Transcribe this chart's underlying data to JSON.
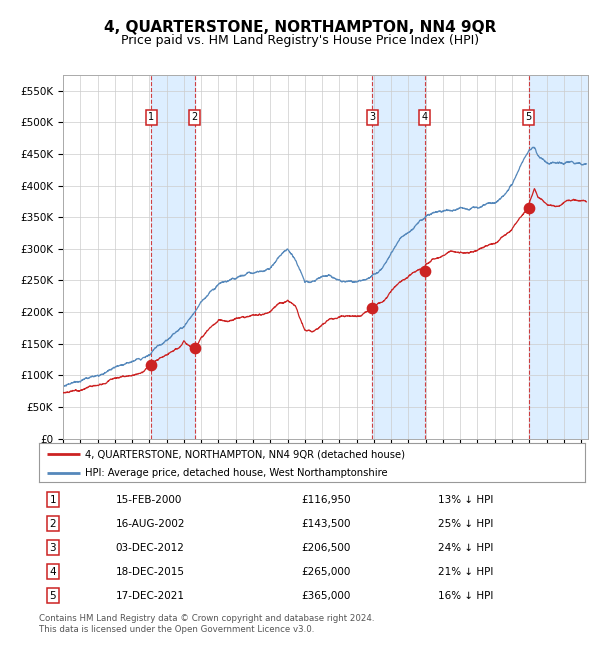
{
  "title": "4, QUARTERSTONE, NORTHAMPTON, NN4 9QR",
  "subtitle": "Price paid vs. HM Land Registry's House Price Index (HPI)",
  "legend_line1": "4, QUARTERSTONE, NORTHAMPTON, NN4 9QR (detached house)",
  "legend_line2": "HPI: Average price, detached house, West Northamptonshire",
  "footer": "Contains HM Land Registry data © Crown copyright and database right 2024.\nThis data is licensed under the Open Government Licence v3.0.",
  "transactions": [
    {
      "num": 1,
      "price": 116950,
      "x_year": 2000.12
    },
    {
      "num": 2,
      "price": 143500,
      "x_year": 2002.63
    },
    {
      "num": 3,
      "price": 206500,
      "x_year": 2012.92
    },
    {
      "num": 4,
      "price": 265000,
      "x_year": 2015.96
    },
    {
      "num": 5,
      "price": 365000,
      "x_year": 2021.96
    }
  ],
  "table_rows": [
    {
      "num": 1,
      "date": "15-FEB-2000",
      "price": "£116,950",
      "pct": "13% ↓ HPI"
    },
    {
      "num": 2,
      "date": "16-AUG-2002",
      "price": "£143,500",
      "pct": "25% ↓ HPI"
    },
    {
      "num": 3,
      "date": "03-DEC-2012",
      "price": "£206,500",
      "pct": "24% ↓ HPI"
    },
    {
      "num": 4,
      "date": "18-DEC-2015",
      "price": "£265,000",
      "pct": "21% ↓ HPI"
    },
    {
      "num": 5,
      "date": "17-DEC-2021",
      "price": "£365,000",
      "pct": "16% ↓ HPI"
    }
  ],
  "hpi_color": "#5588bb",
  "price_color": "#cc2222",
  "shade_color": "#ddeeff",
  "grid_color": "#cccccc",
  "box_color": "#cc2222",
  "ylim": [
    0,
    575000
  ],
  "yticks": [
    0,
    50000,
    100000,
    150000,
    200000,
    250000,
    300000,
    350000,
    400000,
    450000,
    500000,
    550000
  ],
  "xlim_start": 1995.0,
  "xlim_end": 2025.4,
  "title_fontsize": 11,
  "subtitle_fontsize": 9
}
